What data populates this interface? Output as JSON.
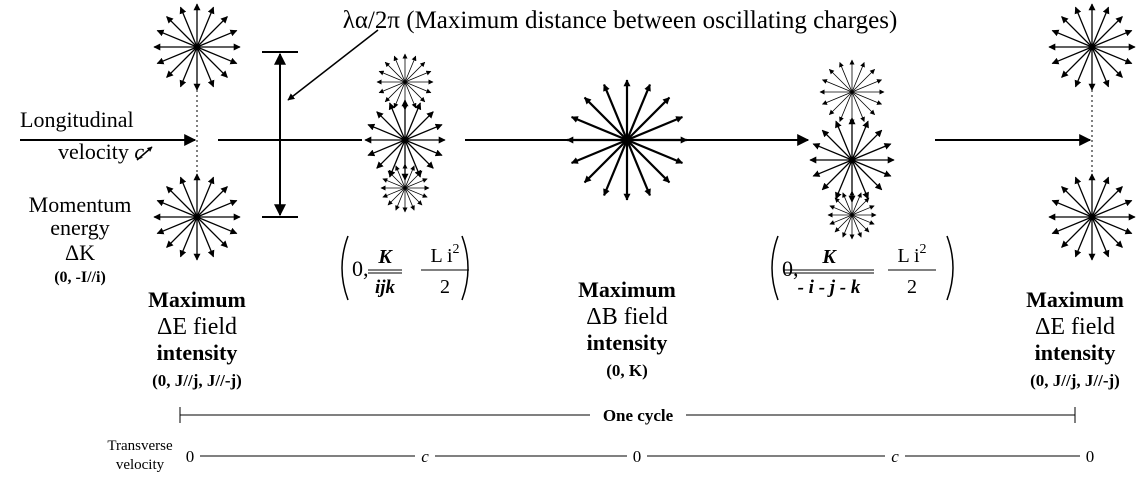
{
  "annotation": {
    "wavelength": "λα/2π (Maximum distance between oscillating charges)",
    "longitudinal": "Longitudinal",
    "velocity": "velocity",
    "c": "c",
    "momentum": [
      "Momentum",
      "energy",
      "ΔK"
    ],
    "momentum_coords": "(0, -I//i)"
  },
  "positions": [
    {
      "title": "Maximum",
      "field": "ΔE field",
      "intensity": "intensity",
      "coords": "(0, J//j, J//-j)"
    },
    {
      "title": "Maximum",
      "field": "ΔB field",
      "intensity": "intensity",
      "coords": "(0, K)"
    },
    {
      "title": "Maximum",
      "field": "ΔE field",
      "intensity": "intensity",
      "coords": "(0, J//j, J//-j)"
    }
  ],
  "formulas": [
    {
      "zero": "0,",
      "numerator": "K",
      "denominator": "ijk",
      "term": "L i",
      "exponent": "2",
      "divisor": "2"
    },
    {
      "zero": "0,",
      "numerator": "K",
      "denominator": "- i - j - k",
      "term": "L i",
      "exponent": "2",
      "divisor": "2"
    }
  ],
  "cycle": "One cycle",
  "transverse": {
    "label": [
      "Transverse",
      "velocity"
    ],
    "values": [
      "0",
      "c",
      "0",
      "c",
      "0"
    ]
  }
}
